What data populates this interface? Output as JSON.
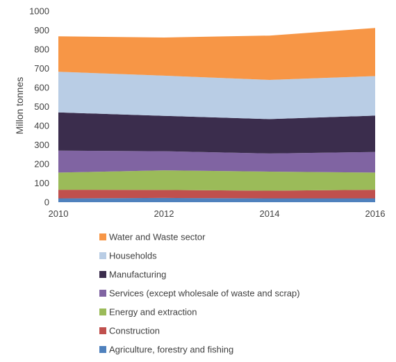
{
  "chart_data": {
    "type": "area",
    "stacked": true,
    "title": "",
    "xlabel": "",
    "ylabel": "Millon tonnes",
    "x": [
      2010,
      2012,
      2014,
      2016
    ],
    "xticks": [
      "2010",
      "2012",
      "2014",
      "2016"
    ],
    "ylim": [
      0,
      1000
    ],
    "yticks": [
      "0",
      "100",
      "200",
      "300",
      "400",
      "500",
      "600",
      "700",
      "800",
      "900",
      "1000"
    ],
    "grid": false,
    "legend_position": "bottom",
    "series": [
      {
        "name": "Agriculture, forestry and fishing",
        "color": "#4f81bd",
        "values": [
          20,
          22,
          20,
          20
        ]
      },
      {
        "name": "Construction",
        "color": "#c0504d",
        "values": [
          45,
          42,
          40,
          45
        ]
      },
      {
        "name": "Energy and extraction",
        "color": "#9bbb59",
        "values": [
          90,
          103,
          100,
          90
        ]
      },
      {
        "name": "Services (except wholesale of waste and scrap)",
        "color": "#8064a2",
        "values": [
          115,
          100,
          95,
          108
        ]
      },
      {
        "name": "Manufacturing",
        "color": "#3b2d4d",
        "values": [
          200,
          185,
          180,
          190
        ]
      },
      {
        "name": "Households",
        "color": "#b9cde5",
        "values": [
          213,
          210,
          205,
          207
        ]
      },
      {
        "name": "Water and Waste sector",
        "color": "#f79646",
        "values": [
          185,
          200,
          232,
          252
        ]
      }
    ]
  }
}
